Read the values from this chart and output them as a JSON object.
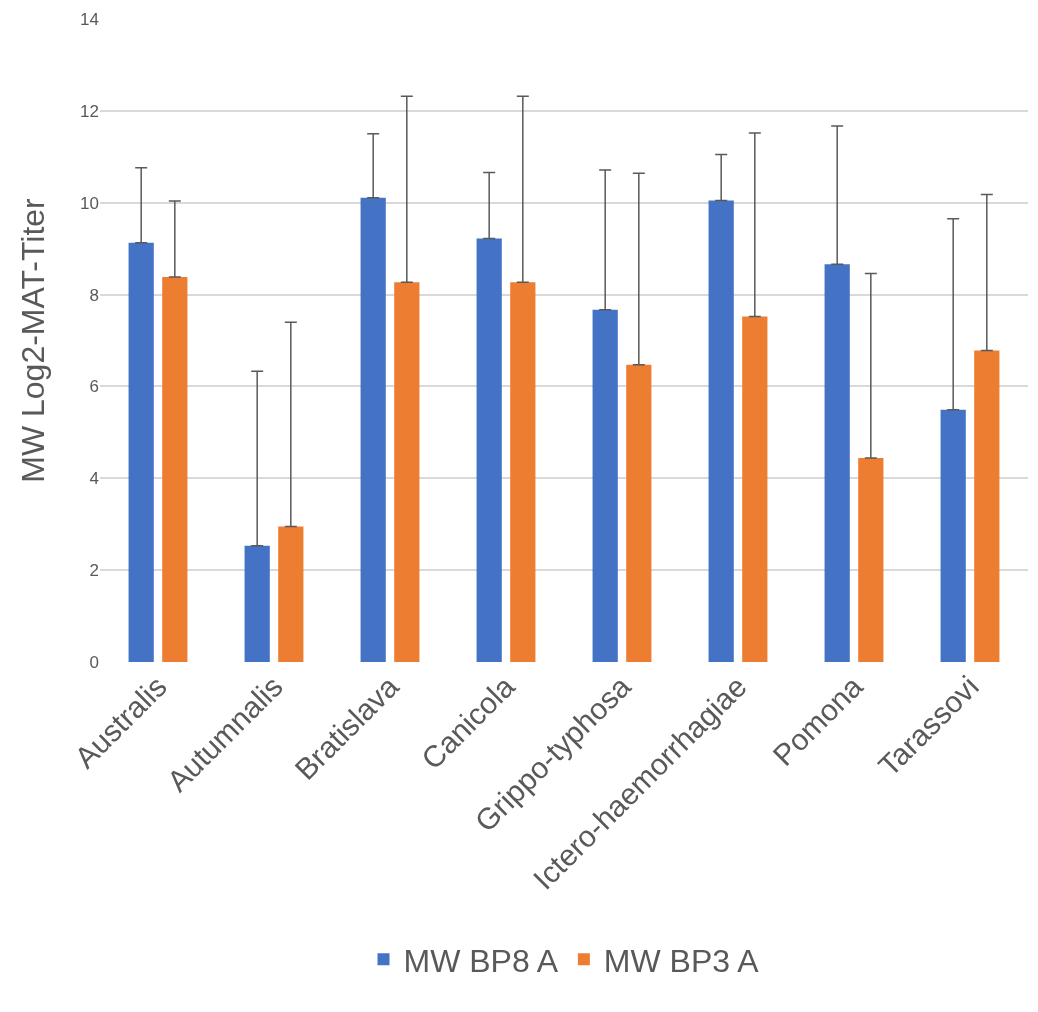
{
  "chart_data": {
    "type": "bar",
    "ylabel": "MW Log2-MAT-Titer",
    "categories": [
      "Australis",
      "Autumnalis",
      "Bratislava",
      "Canicola",
      "Grippo-typhosa",
      "Ictero-haemorrhagiae",
      "Pomona",
      "Tarassovi"
    ],
    "series": [
      {
        "name": "MW BP8 A",
        "color": "#4472c4",
        "values": [
          9.13,
          2.53,
          10.11,
          9.22,
          7.67,
          10.05,
          8.66,
          5.49
        ],
        "errors": [
          [
            9.13,
            10.76
          ],
          [
            2.53,
            6.33
          ],
          [
            10.11,
            11.5
          ],
          [
            9.22,
            10.66
          ],
          [
            7.67,
            10.71
          ],
          [
            10.05,
            11.05
          ],
          [
            8.66,
            11.67
          ],
          [
            5.49,
            9.65
          ]
        ]
      },
      {
        "name": "MW BP3 A",
        "color": "#ed7d31",
        "values": [
          8.38,
          2.95,
          8.27,
          8.27,
          6.47,
          7.52,
          4.44,
          6.78
        ],
        "errors": [
          [
            8.38,
            10.04
          ],
          [
            2.95,
            7.4
          ],
          [
            8.27,
            12.32
          ],
          [
            8.27,
            12.32
          ],
          [
            6.47,
            10.64
          ],
          [
            7.52,
            11.52
          ],
          [
            4.44,
            8.46
          ],
          [
            6.78,
            10.18
          ]
        ]
      }
    ],
    "ylim": [
      0,
      14
    ],
    "yticks": [
      0,
      2,
      4,
      6,
      8,
      10,
      12,
      14
    ],
    "grid": "y",
    "legend": "bottom"
  }
}
